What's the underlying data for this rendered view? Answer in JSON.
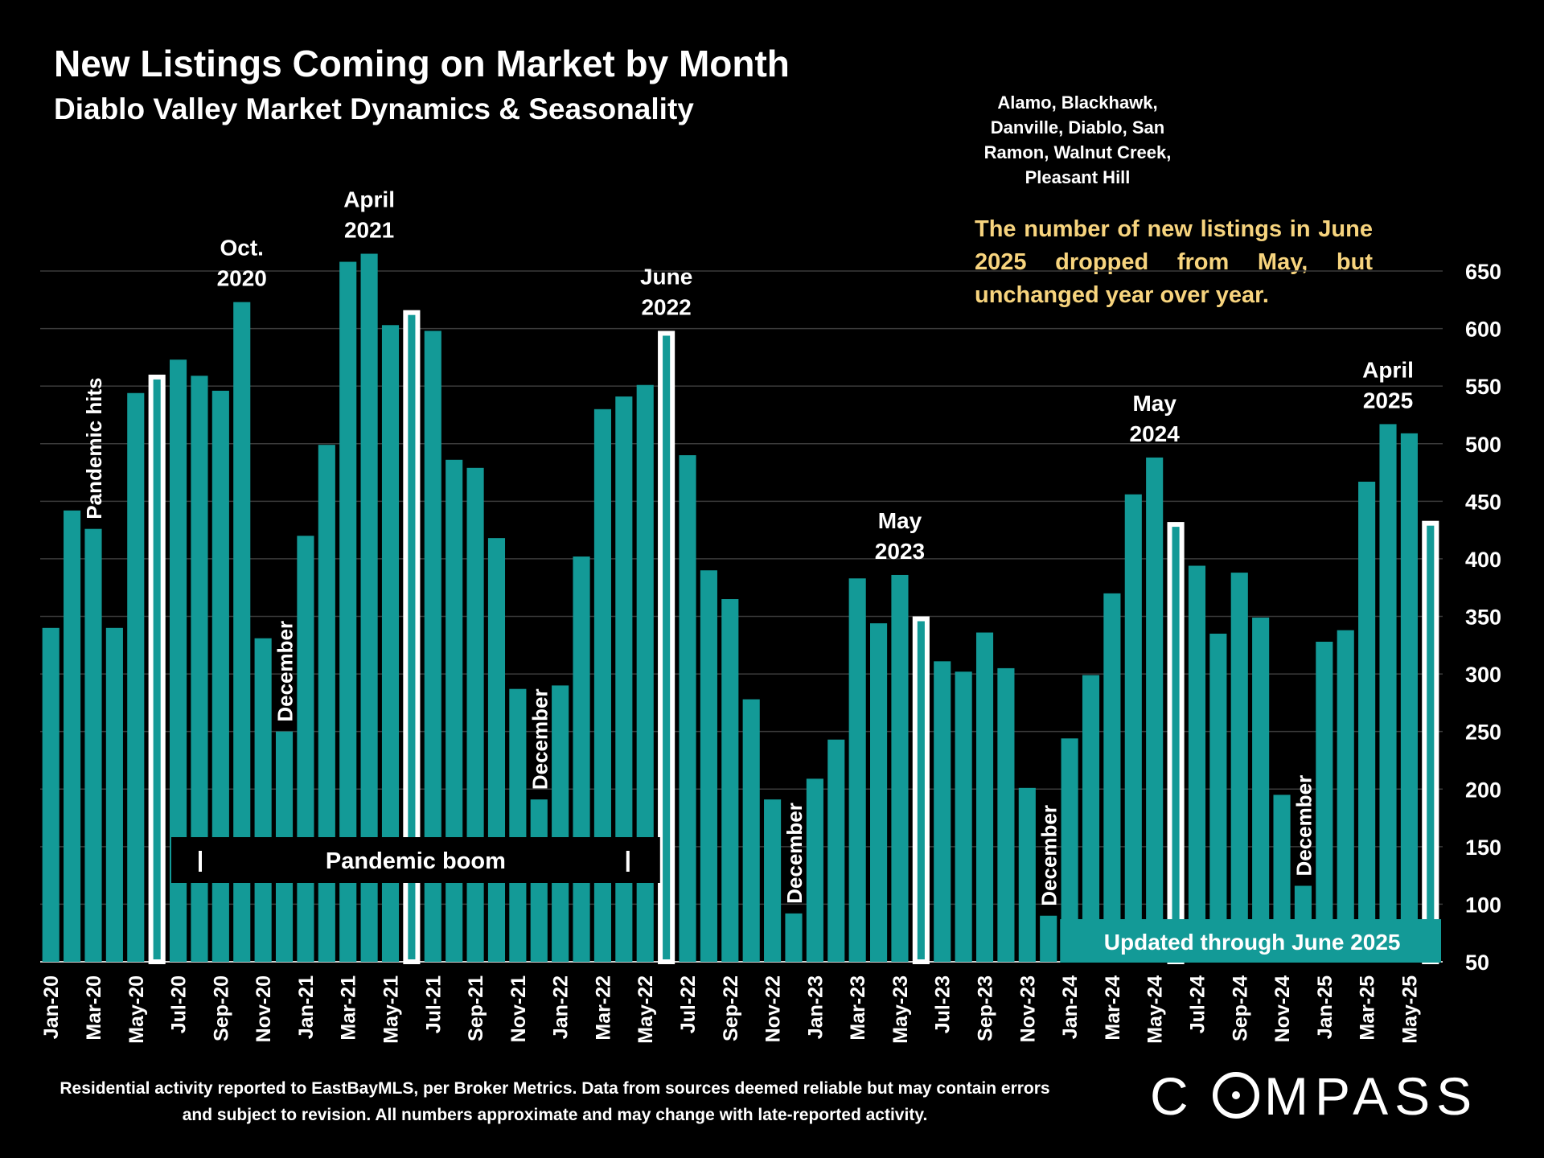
{
  "header": {
    "title": "New Listings Coming on Market by Month",
    "subtitle": "Diablo Valley Market Dynamics & Seasonality",
    "region": "Alamo, Blackhawk, Danville, Diablo, San Ramon, Walnut Creek, Pleasant Hill",
    "annotation": "The number of new listings in June 2025 dropped from May, but unchanged year over year."
  },
  "footer": {
    "note": "Residential activity reported to EastBayMLS, per Broker Metrics. Data from sources deemed reliable but may contain errors and subject to revision. All numbers approximate and may change with late-reported activity.",
    "logo_text": "COMPASS"
  },
  "colors": {
    "bar": "#139a97",
    "highlight_outline": "#ffffff",
    "background": "#000000",
    "annotation": "#f7d47e",
    "gridline": "#3a3a3a"
  },
  "chart_data": {
    "type": "bar",
    "ylim": [
      50,
      675
    ],
    "yticks": [
      50,
      100,
      150,
      200,
      250,
      300,
      350,
      400,
      450,
      500,
      550,
      600,
      650
    ],
    "y_axis_side": "right",
    "grid": true,
    "categories": [
      "Jan-20",
      "Feb-20",
      "Mar-20",
      "Apr-20",
      "May-20",
      "Jun-20",
      "Jul-20",
      "Aug-20",
      "Sep-20",
      "Oct-20",
      "Nov-20",
      "Dec-20",
      "Jan-21",
      "Feb-21",
      "Mar-21",
      "Apr-21",
      "May-21",
      "Jun-21",
      "Jul-21",
      "Aug-21",
      "Sep-21",
      "Oct-21",
      "Nov-21",
      "Dec-21",
      "Jan-22",
      "Feb-22",
      "Mar-22",
      "Apr-22",
      "May-22",
      "Jun-22",
      "Jul-22",
      "Aug-22",
      "Sep-22",
      "Oct-22",
      "Nov-22",
      "Dec-22",
      "Jan-23",
      "Feb-23",
      "Mar-23",
      "Apr-23",
      "May-23",
      "Jun-23",
      "Jul-23",
      "Aug-23",
      "Sep-23",
      "Oct-23",
      "Nov-23",
      "Dec-23",
      "Jan-24",
      "Feb-24",
      "Mar-24",
      "Apr-24",
      "May-24",
      "Jun-24",
      "Jul-24",
      "Aug-24",
      "Sep-24",
      "Oct-24",
      "Nov-24",
      "Dec-24",
      "Jan-25",
      "Feb-25",
      "Mar-25",
      "Apr-25",
      "May-25",
      "Jun-25"
    ],
    "values": [
      340,
      442,
      426,
      340,
      544,
      560,
      573,
      559,
      546,
      623,
      331,
      250,
      420,
      499,
      658,
      665,
      603,
      616,
      598,
      486,
      479,
      418,
      287,
      191,
      290,
      402,
      530,
      541,
      551,
      598,
      490,
      390,
      365,
      278,
      191,
      92,
      209,
      243,
      383,
      344,
      386,
      350,
      311,
      302,
      336,
      305,
      201,
      90,
      244,
      299,
      370,
      456,
      488,
      432,
      394,
      335,
      388,
      349,
      195,
      116,
      328,
      338,
      467,
      517,
      509,
      433
    ],
    "highlighted": [
      "Jun-20",
      "Jun-21",
      "Jun-22",
      "Jun-23",
      "Jun-24",
      "Jun-25"
    ],
    "x_tick_labels": [
      "Jan-20",
      "Mar-20",
      "May-20",
      "Jul-20",
      "Sep-20",
      "Nov-20",
      "Jan-21",
      "Mar-21",
      "May-21",
      "Jul-21",
      "Sep-21",
      "Nov-21",
      "Jan-22",
      "Mar-22",
      "May-22",
      "Jul-22",
      "Sep-22",
      "Nov-22",
      "Jan-23",
      "Mar-23",
      "May-23",
      "Jul-23",
      "Sep-23",
      "Nov-23",
      "Jan-24",
      "Mar-24",
      "May-24",
      "Jul-24",
      "Sep-24",
      "Nov-24",
      "Jan-25",
      "Mar-25",
      "May-25"
    ],
    "y_tick_labels": [
      "50",
      "100",
      "150",
      "200",
      "250",
      "300",
      "350",
      "400",
      "450",
      "500",
      "550",
      "600",
      "650"
    ],
    "annotations": [
      {
        "month": "Oct-20",
        "lines": [
          "Oct.",
          "2020"
        ]
      },
      {
        "month": "Apr-21",
        "lines": [
          "April",
          "2021"
        ]
      },
      {
        "month": "Jun-22",
        "lines": [
          "June",
          "2022"
        ]
      },
      {
        "month": "May-23",
        "lines": [
          "May",
          "2023"
        ]
      },
      {
        "month": "May-24",
        "lines": [
          "May",
          "2024"
        ]
      },
      {
        "month": "Apr-25",
        "lines": [
          "April",
          "2025"
        ]
      }
    ],
    "vertical_annotations": [
      {
        "month": "Mar-20",
        "text": "Pandemic hits"
      },
      {
        "month": "Dec-20",
        "text": "December"
      },
      {
        "month": "Dec-21",
        "text": "December"
      },
      {
        "month": "Dec-22",
        "text": "December"
      },
      {
        "month": "Dec-23",
        "text": "December"
      },
      {
        "month": "Dec-24",
        "text": "December"
      }
    ],
    "pandemic_boom_label": "Pandemic boom",
    "pandemic_boom_range": [
      "Jul-20",
      "May-22"
    ],
    "updated_label": "Updated through June 2025",
    "updated_range": [
      "Dec-23",
      "Jun-25"
    ]
  }
}
